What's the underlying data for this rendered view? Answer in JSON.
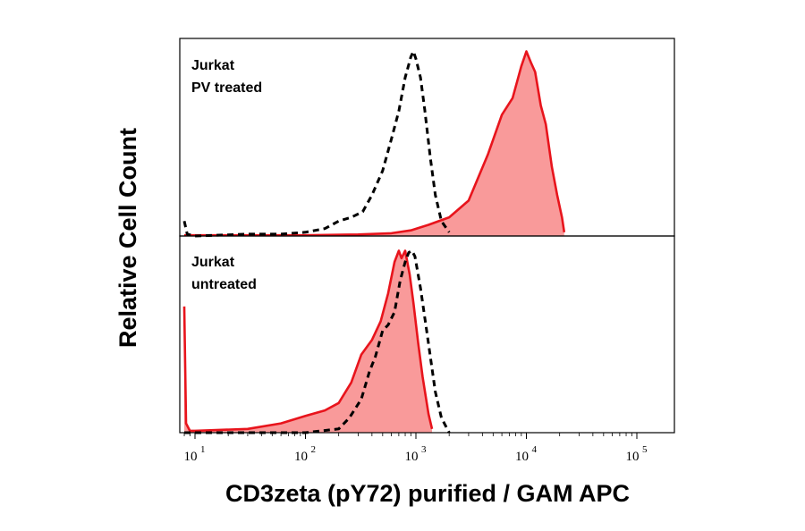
{
  "chart_data": {
    "type": "area",
    "title": "",
    "xlabel": "CD3zeta (pY72) purified / GAM APC",
    "ylabel": "Relative Cell Count",
    "x_scale": "log",
    "xlim": [
      8,
      22000
    ],
    "x_ticks": [
      {
        "value": 10,
        "base": "10",
        "exp": "1"
      },
      {
        "value": 100,
        "base": "10",
        "exp": "2"
      },
      {
        "value": 1000,
        "base": "10",
        "exp": "3"
      },
      {
        "value": 10000,
        "base": "10",
        "exp": "4"
      },
      {
        "value": 100000,
        "base": "10",
        "exp": "5"
      }
    ],
    "y_ticks": "none",
    "grid": false,
    "legend": "none",
    "colors": {
      "stained_line": "#e8141c",
      "stained_fill": "#f99a9a",
      "control_line": "#000000",
      "frame": "#000000"
    },
    "panels": [
      {
        "label_lines": [
          "Jurkat",
          "PV treated"
        ],
        "ylim": [
          0,
          1.05
        ],
        "series": [
          {
            "style": "red-filled",
            "x": [
              8,
              100,
              300,
              600,
              900,
              1300,
              2000,
              3000,
              4500,
              6000,
              7500,
              9000,
              10000,
              11000,
              12000,
              13500,
              15000,
              17000,
              19000,
              21000,
              22000
            ],
            "y": [
              0.004,
              0.004,
              0.008,
              0.015,
              0.03,
              0.06,
              0.1,
              0.19,
              0.44,
              0.65,
              0.74,
              0.91,
              0.99,
              0.93,
              0.88,
              0.7,
              0.6,
              0.37,
              0.22,
              0.1,
              0.02
            ]
          },
          {
            "style": "black-dashed",
            "x": [
              8,
              8.5,
              10,
              30,
              60,
              100,
              150,
              200,
              260,
              330,
              400,
              500,
              600,
              700,
              800,
              900,
              950,
              1000,
              1100,
              1200,
              1350,
              1500,
              1700,
              2000
            ],
            "y": [
              0.08,
              0.01,
              0.0,
              0.01,
              0.01,
              0.02,
              0.04,
              0.08,
              0.1,
              0.13,
              0.22,
              0.35,
              0.52,
              0.67,
              0.85,
              0.96,
              0.99,
              0.95,
              0.85,
              0.68,
              0.42,
              0.22,
              0.08,
              0.02
            ]
          }
        ]
      },
      {
        "label_lines": [
          "Jurkat",
          "untreated"
        ],
        "ylim": [
          0,
          1.05
        ],
        "series": [
          {
            "style": "red-filled",
            "x": [
              8,
              8.3,
              9,
              10,
              30,
              60,
              100,
              150,
              200,
              260,
              320,
              400,
              480,
              560,
              640,
              700,
              740,
              800,
              880,
              950,
              1050,
              1150,
              1300,
              1400
            ],
            "y": [
              0.68,
              0.05,
              0.01,
              0.01,
              0.02,
              0.05,
              0.09,
              0.12,
              0.16,
              0.27,
              0.42,
              0.5,
              0.6,
              0.75,
              0.92,
              0.98,
              0.94,
              0.98,
              0.85,
              0.7,
              0.48,
              0.3,
              0.1,
              0.02
            ]
          },
          {
            "style": "black-dashed",
            "x": [
              8,
              100,
              200,
              250,
              320,
              380,
              430,
              500,
              560,
              640,
              720,
              800,
              860,
              920,
              980,
              1100,
              1250,
              1500,
              1700,
              2000
            ],
            "y": [
              0.0,
              0.0,
              0.02,
              0.08,
              0.18,
              0.33,
              0.41,
              0.55,
              0.58,
              0.65,
              0.82,
              0.92,
              0.97,
              0.98,
              0.95,
              0.78,
              0.55,
              0.22,
              0.08,
              0.0
            ]
          }
        ]
      }
    ]
  }
}
